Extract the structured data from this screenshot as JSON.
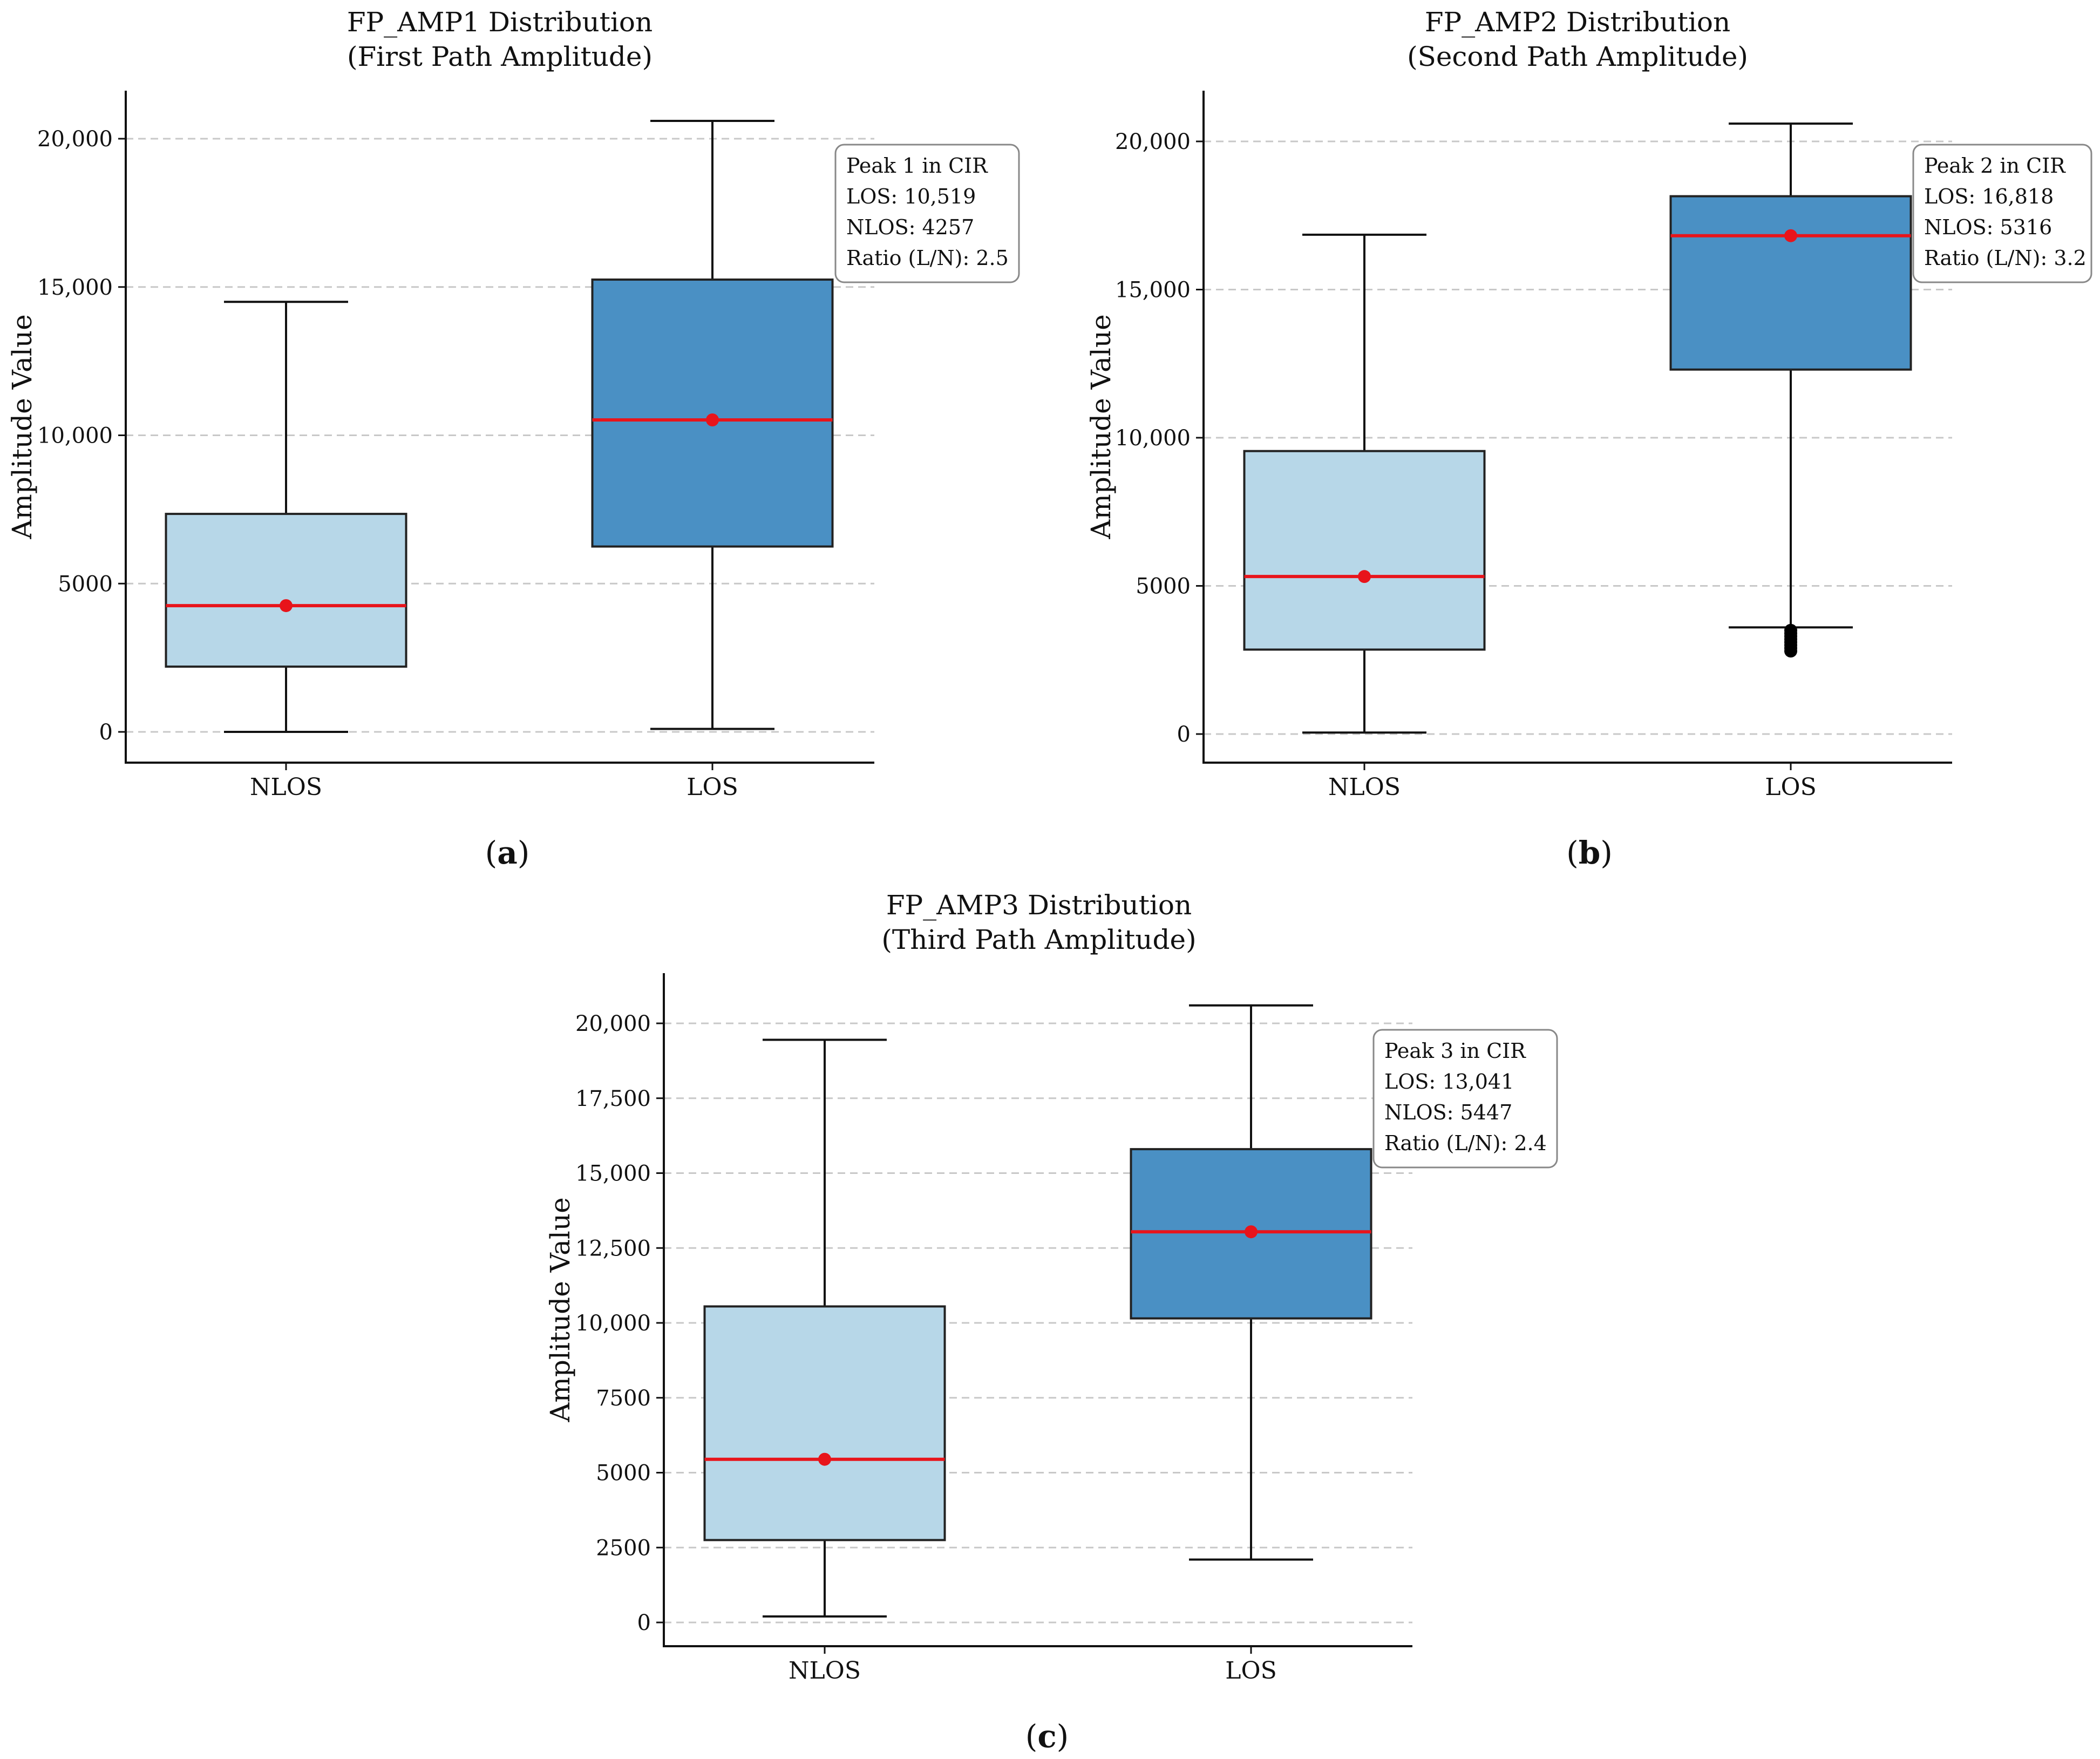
{
  "figure": {
    "labels": [
      "a",
      "b",
      "c"
    ]
  },
  "colors": {
    "nlos_fill": "#b7d7e8",
    "los_fill": "#4a90c4",
    "median": "#e8141b",
    "mean_dot": "#e8141b",
    "outlier": "#000000"
  },
  "chart_data": [
    {
      "type": "box",
      "title": "FP_AMP1 Distribution",
      "subtitle": "(First Path Amplitude)",
      "ylabel": "Amplitude Value",
      "xlabel": "",
      "categories": [
        "NLOS",
        "LOS"
      ],
      "ylim": [
        -1000,
        21600
      ],
      "yticks": [
        0,
        5000,
        10000,
        15000,
        20000
      ],
      "ytick_labels": [
        "0",
        "5000",
        "10,000",
        "15,000",
        "20,000"
      ],
      "grid": true,
      "boxes": [
        {
          "category": "NLOS",
          "whisker_low": 0,
          "q1": 2200,
          "median": 4257,
          "q3": 7350,
          "whisker_high": 14500,
          "mean": 4257,
          "outliers": []
        },
        {
          "category": "LOS",
          "whisker_low": 100,
          "q1": 6250,
          "median": 10519,
          "q3": 15250,
          "whisker_high": 20600,
          "mean": 10519,
          "outliers": []
        }
      ],
      "annotation": [
        "Peak 1 in CIR",
        "LOS: 10,519",
        "NLOS: 4257",
        "Ratio (L/N): 2.5"
      ]
    },
    {
      "type": "box",
      "title": "FP_AMP2 Distribution",
      "subtitle": "(Second Path Amplitude)",
      "ylabel": "Amplitude Value",
      "xlabel": "",
      "categories": [
        "NLOS",
        "LOS"
      ],
      "ylim": [
        -1000,
        21600
      ],
      "yticks": [
        0,
        5000,
        10000,
        15000,
        20000
      ],
      "ytick_labels": [
        "0",
        "5000",
        "10,000",
        "15,000",
        "20,000"
      ],
      "grid": true,
      "boxes": [
        {
          "category": "NLOS",
          "whisker_low": 50,
          "q1": 2850,
          "median": 5316,
          "q3": 9550,
          "whisker_high": 16850,
          "mean": 5316,
          "outliers": []
        },
        {
          "category": "LOS",
          "whisker_low": 3600,
          "q1": 12300,
          "median": 16818,
          "q3": 18150,
          "whisker_high": 20600,
          "mean": 16818,
          "outliers": [
            3500,
            3400,
            3300,
            3200,
            3100,
            3000,
            2900,
            2800
          ]
        }
      ],
      "annotation": [
        "Peak 2 in CIR",
        "LOS: 16,818",
        "NLOS: 5316",
        "Ratio (L/N): 3.2"
      ]
    },
    {
      "type": "box",
      "title": "FP_AMP3 Distribution",
      "subtitle": "(Third Path Amplitude)",
      "ylabel": "Amplitude Value",
      "xlabel": "",
      "categories": [
        "NLOS",
        "LOS"
      ],
      "ylim": [
        -800,
        21600
      ],
      "yticks": [
        0,
        2500,
        5000,
        7500,
        10000,
        12500,
        15000,
        17500,
        20000
      ],
      "ytick_labels": [
        "0",
        "2500",
        "5000",
        "7500",
        "10,000",
        "12,500",
        "15,000",
        "17,500",
        "20,000"
      ],
      "grid": true,
      "boxes": [
        {
          "category": "NLOS",
          "whisker_low": 200,
          "q1": 2750,
          "median": 5447,
          "q3": 10550,
          "whisker_high": 19450,
          "mean": 5447,
          "outliers": []
        },
        {
          "category": "LOS",
          "whisker_low": 2100,
          "q1": 10150,
          "median": 13041,
          "q3": 15800,
          "whisker_high": 20600,
          "mean": 13041,
          "outliers": []
        }
      ],
      "annotation": [
        "Peak 3 in CIR",
        "LOS: 13,041",
        "NLOS: 5447",
        "Ratio (L/N): 2.4"
      ]
    }
  ]
}
